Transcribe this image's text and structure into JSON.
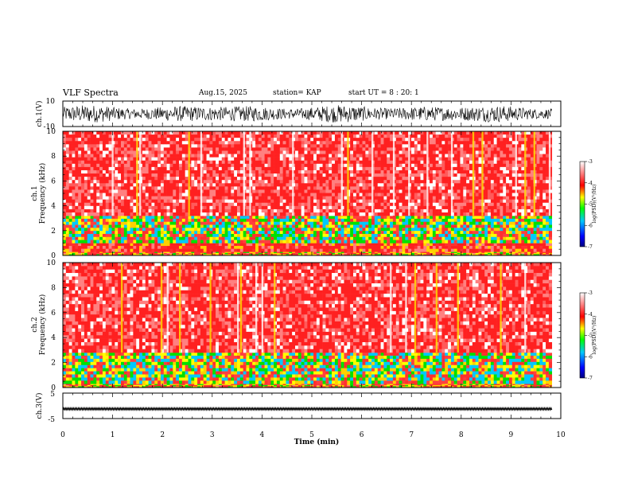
{
  "header": {
    "title": "VLF Spectra",
    "date": "Aug.15, 2025",
    "station": "station= KAP",
    "start": "start  UT  =   8 : 20: 1"
  },
  "chart_data": [
    {
      "type": "line",
      "name": "ch1-waveform",
      "title": "",
      "xlabel": "",
      "ylabel": "ch.1(V)",
      "xlim": [
        0,
        10
      ],
      "ylim": [
        -10,
        10
      ],
      "ytick_labels": [
        "-10",
        "10"
      ],
      "series": [
        {
          "name": "ch.1",
          "amplitude_range": [
            -7,
            7
          ],
          "x_end": 9.82
        }
      ]
    },
    {
      "type": "heatmap",
      "name": "ch1-spectrogram",
      "ylabel": "Frequency  (kHz)",
      "channel_label": "ch.1",
      "xlim": [
        0,
        9.82
      ],
      "ylim": [
        0,
        10
      ],
      "ytick_labels": [
        "0",
        "2",
        "4",
        "6",
        "8",
        "10"
      ],
      "bands_khz": [
        {
          "from": 0.0,
          "to": 0.3,
          "level": -4.5
        },
        {
          "from": 0.3,
          "to": 1.0,
          "level": -4.0
        },
        {
          "from": 1.0,
          "to": 3.2,
          "level": -4.8
        },
        {
          "from": 3.2,
          "to": 10.0,
          "level": -3.5
        }
      ],
      "colorbar": {
        "min": -7,
        "max": -3,
        "ticks": [
          "-3",
          "-4",
          "-5",
          "-6",
          "-7"
        ],
        "label": "log(PSD)(V²/Hz)"
      }
    },
    {
      "type": "heatmap",
      "name": "ch2-spectrogram",
      "ylabel": "Frequency  (kHz)",
      "channel_label": "ch.2",
      "xlim": [
        0,
        9.82
      ],
      "ylim": [
        0,
        10
      ],
      "ytick_labels": [
        "0",
        "2",
        "4",
        "6",
        "8",
        "10"
      ],
      "bands_khz": [
        {
          "from": 0.0,
          "to": 0.3,
          "level": -4.5
        },
        {
          "from": 0.3,
          "to": 2.8,
          "level": -4.8
        },
        {
          "from": 2.8,
          "to": 10.0,
          "level": -3.5
        }
      ],
      "colorbar": {
        "min": -7,
        "max": -3,
        "ticks": [
          "-3",
          "-4",
          "-5",
          "-6",
          "-7"
        ],
        "label": "log(PSD)(V²/Hz)"
      }
    },
    {
      "type": "line",
      "name": "ch3-waveform",
      "ylabel": "ch.3(V)",
      "xlabel": "Time  (min)",
      "xlim": [
        0,
        10
      ],
      "ylim": [
        -5,
        5
      ],
      "ytick_labels": [
        "-5",
        "5"
      ],
      "xtick_labels": [
        "0",
        "1",
        "2",
        "3",
        "4",
        "5",
        "6",
        "7",
        "8",
        "9",
        "10"
      ],
      "series": [
        {
          "name": "ch.3",
          "mean": -1.2,
          "amplitude": 0.4,
          "x_end": 9.82
        }
      ]
    }
  ],
  "colors": {
    "colormap": [
      "#000080",
      "#0000ff",
      "#00c8ff",
      "#00ff00",
      "#ffff00",
      "#ff0000",
      "#ffffff"
    ]
  }
}
